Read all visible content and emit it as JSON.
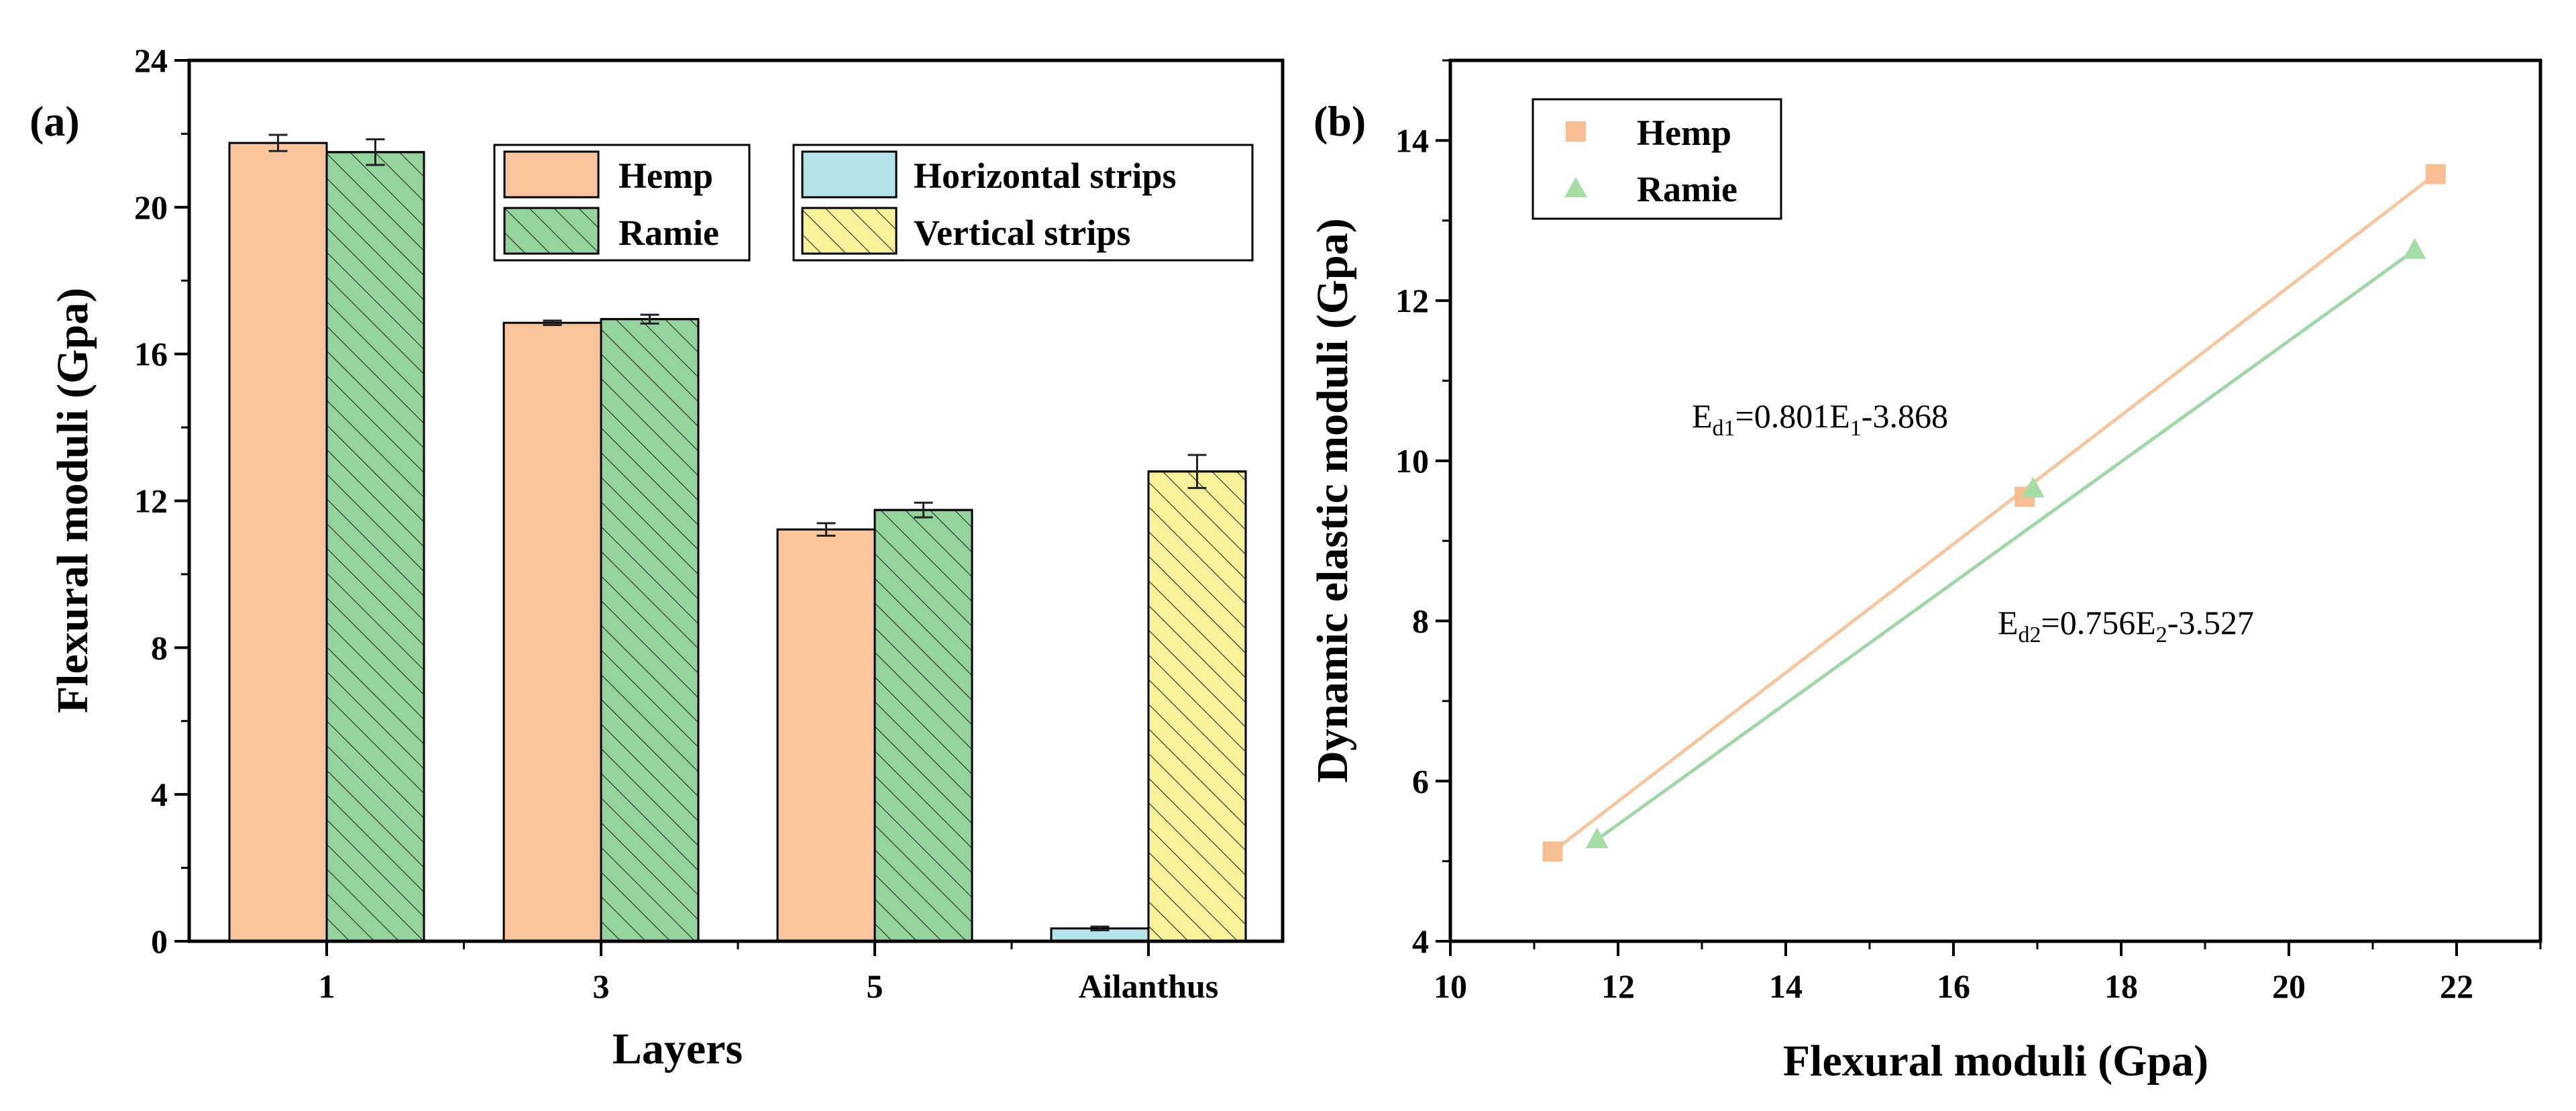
{
  "colors": {
    "hemp": "#f9c49c",
    "ramie": "#94d39b",
    "horizontal": "#b4e4ea",
    "vertical": "#f7f19a",
    "hemp_point": "#f7be94",
    "ramie_point": "#a7dca6",
    "hemp_line": "#f8c59f",
    "ramie_line": "#9fd8a4"
  },
  "chart_data": [
    {
      "panel": "(a)",
      "type": "bar",
      "xlabel": "Layers",
      "ylabel": "Flexural moduli (Gpa)",
      "ylim": [
        0,
        24
      ],
      "yticks": [
        "0",
        "4",
        "8",
        "12",
        "16",
        "20",
        "24"
      ],
      "categories": [
        "1",
        "3",
        "5",
        "Ailanthus"
      ],
      "series": [
        {
          "name": "Hemp",
          "hatched": false,
          "color_key": "hemp",
          "values": [
            21.75,
            16.85,
            11.22,
            null
          ],
          "errors": [
            0.22,
            0.06,
            0.17,
            null
          ]
        },
        {
          "name": "Ramie",
          "hatched": true,
          "color_key": "ramie",
          "values": [
            21.5,
            16.95,
            11.75,
            null
          ],
          "errors": [
            0.35,
            0.12,
            0.2,
            null
          ]
        },
        {
          "name": "Horizontal strips",
          "hatched": false,
          "color_key": "horizontal",
          "values": [
            null,
            null,
            null,
            0.35
          ],
          "errors": [
            null,
            null,
            null,
            0.05
          ]
        },
        {
          "name": "Vertical strips",
          "hatched": true,
          "color_key": "vertical",
          "values": [
            null,
            null,
            null,
            12.8
          ],
          "errors": [
            null,
            null,
            null,
            0.45
          ]
        }
      ],
      "legend": [
        "Hemp",
        "Ramie",
        "Horizontal strips",
        "Vertical strips"
      ],
      "legend_position": "top-right, two boxes"
    },
    {
      "panel": "(b)",
      "type": "scatter",
      "xlabel": "Flexural moduli (Gpa)",
      "ylabel": "Dynamic elastic moduli (Gpa)",
      "xlim": [
        10,
        23
      ],
      "ylim": [
        4,
        15
      ],
      "xticks": [
        "10",
        "12",
        "14",
        "16",
        "18",
        "20",
        "22"
      ],
      "yticks": [
        "4",
        "6",
        "8",
        "10",
        "12",
        "14"
      ],
      "series": [
        {
          "name": "Hemp",
          "marker": "square",
          "color_key": "hemp_point",
          "x": [
            11.22,
            16.85,
            21.75
          ],
          "y": [
            5.12,
            9.55,
            13.58
          ],
          "fit": {
            "base": "E",
            "sub": "d1",
            "eq": "=0.801E",
            "x_sub": "1",
            "rest": "-3.868",
            "x_range": [
              11.22,
              21.75
            ],
            "y_range": [
              5.12,
              13.58
            ]
          }
        },
        {
          "name": "Ramie",
          "marker": "triangle",
          "color_key": "ramie_point",
          "x": [
            11.75,
            16.95,
            21.5
          ],
          "y": [
            5.27,
            9.65,
            12.63
          ],
          "fit": {
            "base": "E",
            "sub": "d2",
            "eq": "=0.756E",
            "x_sub": "2",
            "rest": "-3.527",
            "x_range": [
              11.75,
              21.5
            ],
            "y_range": [
              5.27,
              12.63
            ]
          }
        }
      ],
      "legend": [
        "Hemp",
        "Ramie"
      ],
      "legend_position": "top-left"
    }
  ]
}
